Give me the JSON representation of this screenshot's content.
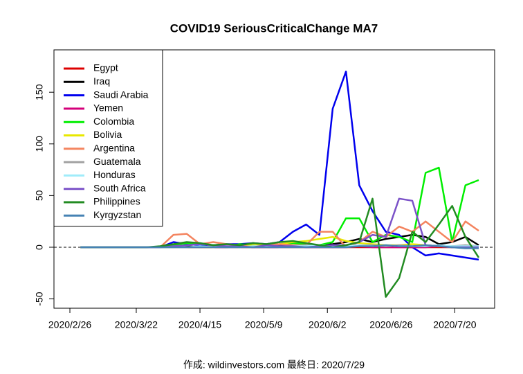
{
  "chart_data": {
    "type": "line",
    "title": "COVID19 SeriousCriticalChange MA7",
    "footer": "作成: wildinvestors.com 最終日: 2020/7/29",
    "x": [
      "2020/3/1",
      "2020/3/6",
      "2020/3/11",
      "2020/3/16",
      "2020/3/21",
      "2020/3/26",
      "2020/3/31",
      "2020/4/5",
      "2020/4/10",
      "2020/4/15",
      "2020/4/20",
      "2020/4/25",
      "2020/4/30",
      "2020/5/5",
      "2020/5/10",
      "2020/5/15",
      "2020/5/20",
      "2020/5/25",
      "2020/5/30",
      "2020/6/4",
      "2020/6/9",
      "2020/6/14",
      "2020/6/19",
      "2020/6/24",
      "2020/6/29",
      "2020/7/4",
      "2020/7/9",
      "2020/7/14",
      "2020/7/19",
      "2020/7/24",
      "2020/7/29"
    ],
    "xlim": [
      "2020/2/20",
      "2020/8/4"
    ],
    "xticks": [
      "2020/2/26",
      "2020/3/22",
      "2020/4/15",
      "2020/5/9",
      "2020/6/2",
      "2020/6/26",
      "2020/7/20"
    ],
    "ylim": [
      -59,
      191
    ],
    "yticks": [
      -50,
      0,
      50,
      100,
      150
    ],
    "reference_line": 0,
    "legend": "top-left",
    "series": [
      {
        "name": "Egypt",
        "color": "#dd0000",
        "values": [
          0,
          0,
          0,
          0,
          0,
          0,
          0,
          0,
          0,
          0,
          0,
          0,
          0,
          0,
          0,
          0,
          0,
          0,
          0,
          0,
          0,
          0,
          0,
          0,
          0,
          0,
          0,
          0,
          0,
          0,
          0
        ]
      },
      {
        "name": "Iraq",
        "color": "#000000",
        "values": [
          0,
          0,
          0,
          0,
          0,
          0,
          0,
          0,
          1,
          0,
          1,
          0,
          1,
          0,
          1,
          2,
          1,
          2,
          2,
          3,
          5,
          8,
          5,
          8,
          10,
          12,
          10,
          3,
          5,
          10,
          2
        ]
      },
      {
        "name": "Saudi Arabia",
        "color": "#0000ee",
        "values": [
          0,
          0,
          0,
          0,
          0,
          0,
          0,
          5,
          3,
          2,
          2,
          3,
          3,
          4,
          3,
          5,
          15,
          22,
          12,
          134,
          170,
          60,
          35,
          15,
          12,
          0,
          -8,
          -6,
          -8,
          -10,
          -12
        ]
      },
      {
        "name": "Yemen",
        "color": "#d4007a",
        "values": [
          0,
          0,
          0,
          0,
          0,
          0,
          0,
          0,
          0,
          0,
          0,
          0,
          1,
          0,
          0,
          0,
          1,
          0,
          0,
          0,
          0,
          1,
          0,
          0,
          0,
          0,
          0,
          1,
          0,
          0,
          0
        ]
      },
      {
        "name": "Colombia",
        "color": "#00ee00",
        "values": [
          0,
          0,
          0,
          0,
          0,
          0,
          0,
          2,
          4,
          3,
          2,
          0,
          3,
          2,
          1,
          3,
          4,
          3,
          2,
          5,
          28,
          28,
          5,
          12,
          10,
          5,
          72,
          77,
          5,
          60,
          65
        ]
      },
      {
        "name": "Bolivia",
        "color": "#e8e800",
        "values": [
          0,
          0,
          0,
          0,
          0,
          0,
          0,
          0,
          0,
          0,
          0,
          1,
          1,
          2,
          2,
          3,
          5,
          6,
          8,
          10,
          6,
          4,
          3,
          2,
          2,
          3,
          2,
          1,
          1,
          1,
          0
        ]
      },
      {
        "name": "Argentina",
        "color": "#f4845f",
        "values": [
          0,
          0,
          0,
          0,
          0,
          0,
          0,
          12,
          13,
          3,
          5,
          3,
          2,
          0,
          2,
          3,
          2,
          2,
          15,
          15,
          0,
          5,
          15,
          10,
          20,
          15,
          25,
          15,
          5,
          25,
          16
        ]
      },
      {
        "name": "Guatemala",
        "color": "#a0a0a0",
        "values": [
          0,
          0,
          0,
          0,
          0,
          0,
          0,
          0,
          0,
          0,
          1,
          0,
          0,
          1,
          0,
          1,
          1,
          2,
          1,
          2,
          1,
          2,
          2,
          1,
          2,
          1,
          2,
          1,
          1,
          2,
          1
        ]
      },
      {
        "name": "Honduras",
        "color": "#a0ecfa",
        "values": [
          0,
          0,
          0,
          0,
          0,
          0,
          0,
          0,
          0,
          1,
          0,
          1,
          0,
          1,
          1,
          0,
          1,
          1,
          2,
          1,
          1,
          2,
          1,
          2,
          1,
          1,
          1,
          2,
          1,
          1,
          1
        ]
      },
      {
        "name": "South Africa",
        "color": "#7b52c8",
        "values": [
          0,
          0,
          0,
          0,
          0,
          0,
          0,
          1,
          2,
          3,
          2,
          1,
          1,
          0,
          2,
          1,
          1,
          0,
          1,
          2,
          2,
          5,
          12,
          10,
          47,
          45,
          2,
          1,
          0,
          0,
          0
        ]
      },
      {
        "name": "Philippines",
        "color": "#228b22",
        "values": [
          0,
          0,
          0,
          0,
          0,
          0,
          1,
          3,
          5,
          4,
          2,
          3,
          2,
          4,
          3,
          5,
          6,
          4,
          2,
          0,
          2,
          5,
          47,
          -48,
          -30,
          15,
          5,
          22,
          40,
          10,
          -10
        ]
      },
      {
        "name": "Kyrgyzstan",
        "color": "#4682b4",
        "values": [
          0,
          0,
          0,
          0,
          0,
          0,
          0,
          0,
          0,
          0,
          0,
          0,
          0,
          0,
          0,
          0,
          0,
          0,
          0,
          0,
          0,
          1,
          1,
          2,
          1,
          1,
          2,
          1,
          0,
          -1,
          -1
        ]
      }
    ]
  }
}
